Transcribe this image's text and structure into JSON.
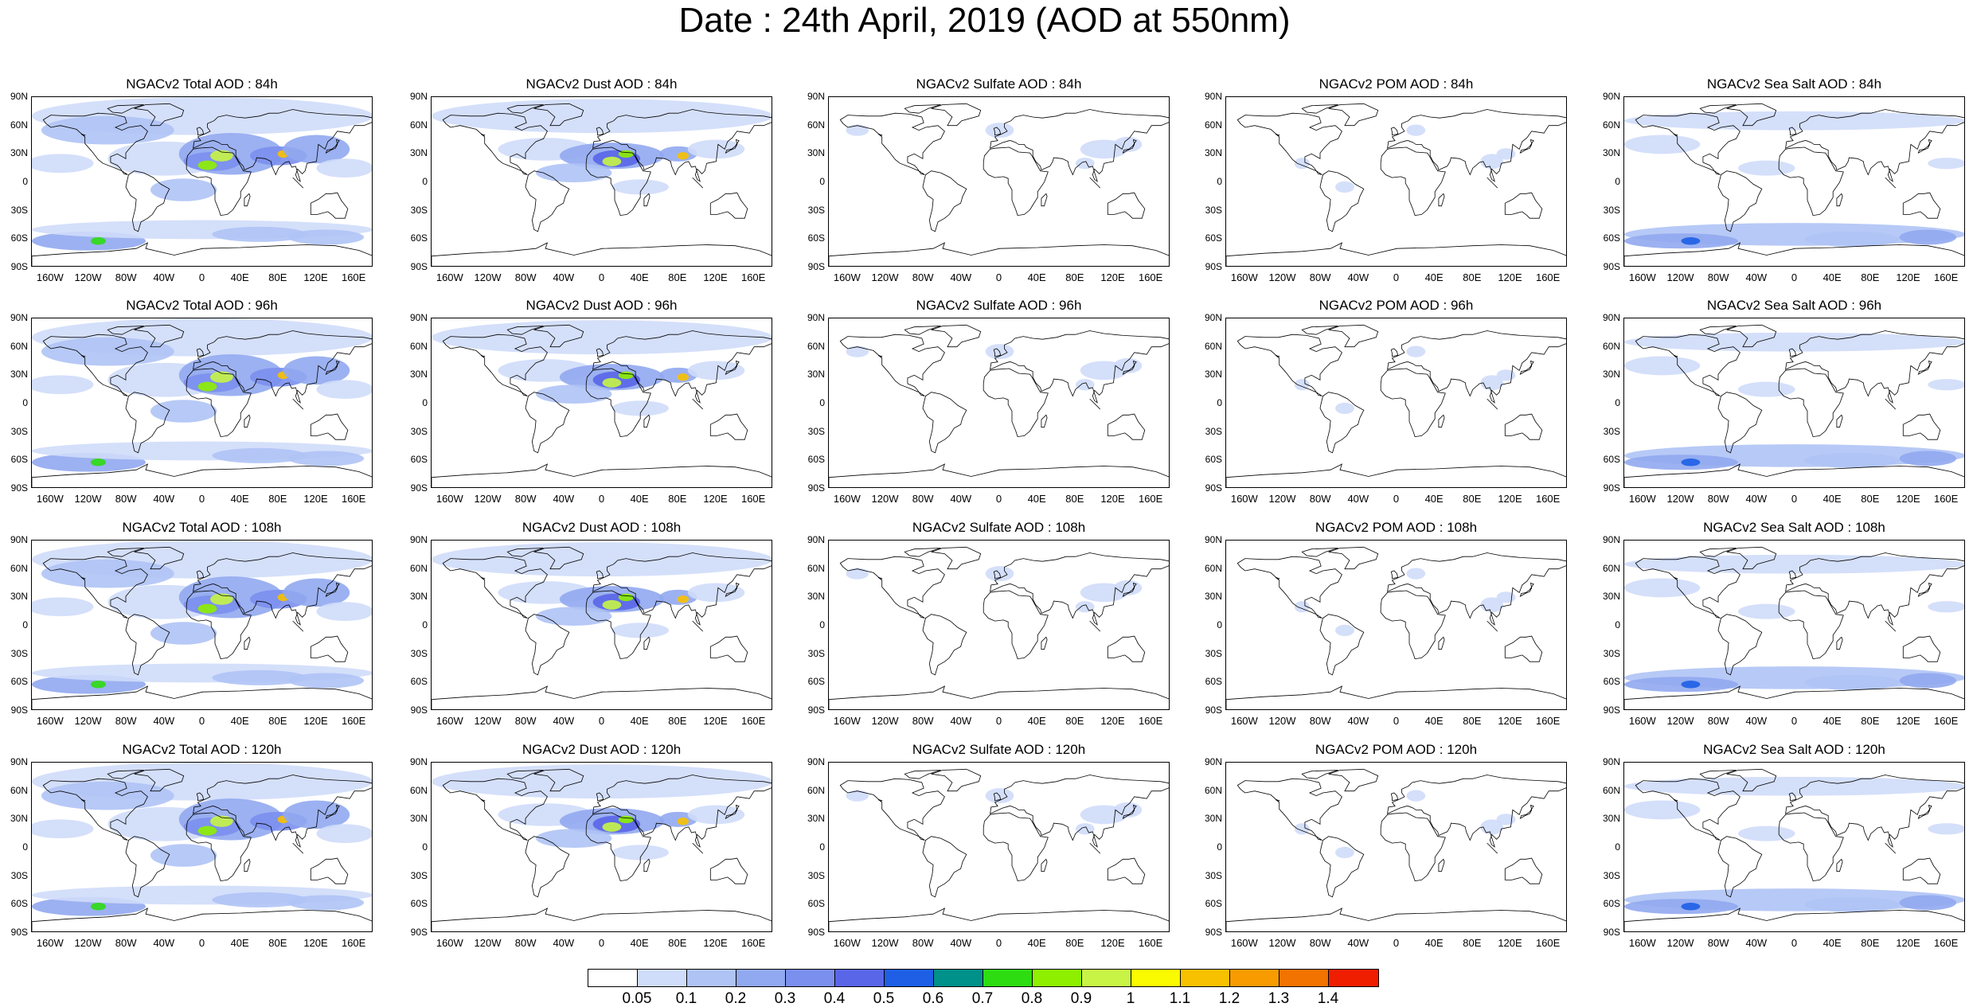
{
  "title": "Date : 24th April, 2019 (AOD at 550nm)",
  "panels": [
    [
      "NGACv2 Total AOD : 84h",
      "NGACv2 Dust AOD : 84h",
      "NGACv2 Sulfate AOD : 84h",
      "NGACv2 POM AOD : 84h",
      "NGACv2 Sea Salt AOD : 84h"
    ],
    [
      "NGACv2 Total AOD : 96h",
      "NGACv2 Dust AOD : 96h",
      "NGACv2 Sulfate AOD : 96h",
      "NGACv2 POM AOD : 96h",
      "NGACv2 Sea Salt AOD : 96h"
    ],
    [
      "NGACv2 Total AOD : 108h",
      "NGACv2 Dust AOD : 108h",
      "NGACv2 Sulfate AOD : 108h",
      "NGACv2 POM AOD : 108h",
      "NGACv2 Sea Salt AOD : 108h"
    ],
    [
      "NGACv2 Total AOD : 120h",
      "NGACv2 Dust AOD : 120h",
      "NGACv2 Sulfate AOD : 120h",
      "NGACv2 POM AOD : 120h",
      "NGACv2 Sea Salt  AOD : 120h"
    ]
  ],
  "species": [
    "total",
    "dust",
    "sulfate",
    "pom",
    "seasalt"
  ],
  "lat_ticks": [
    "90N",
    "60N",
    "30N",
    "0",
    "30S",
    "60S",
    "90S"
  ],
  "lon_ticks": [
    "160W",
    "120W",
    "80W",
    "40W",
    "0",
    "40E",
    "80E",
    "120E",
    "160E"
  ],
  "colorbar": {
    "labels": [
      "0.05",
      "0.1",
      "0.2",
      "0.3",
      "0.4",
      "0.5",
      "0.6",
      "0.7",
      "0.8",
      "0.9",
      "1",
      "1.1",
      "1.2",
      "1.3",
      "1.4"
    ],
    "colors": [
      "#ffffff",
      "#cfdcfa",
      "#afc3f5",
      "#91a9f0",
      "#7b8fee",
      "#5a66e8",
      "#1e5fe6",
      "#00918a",
      "#2edc12",
      "#8ef000",
      "#c8f545",
      "#fbfb00",
      "#f8c100",
      "#f89b00",
      "#f27300",
      "#f01e00"
    ]
  }
}
